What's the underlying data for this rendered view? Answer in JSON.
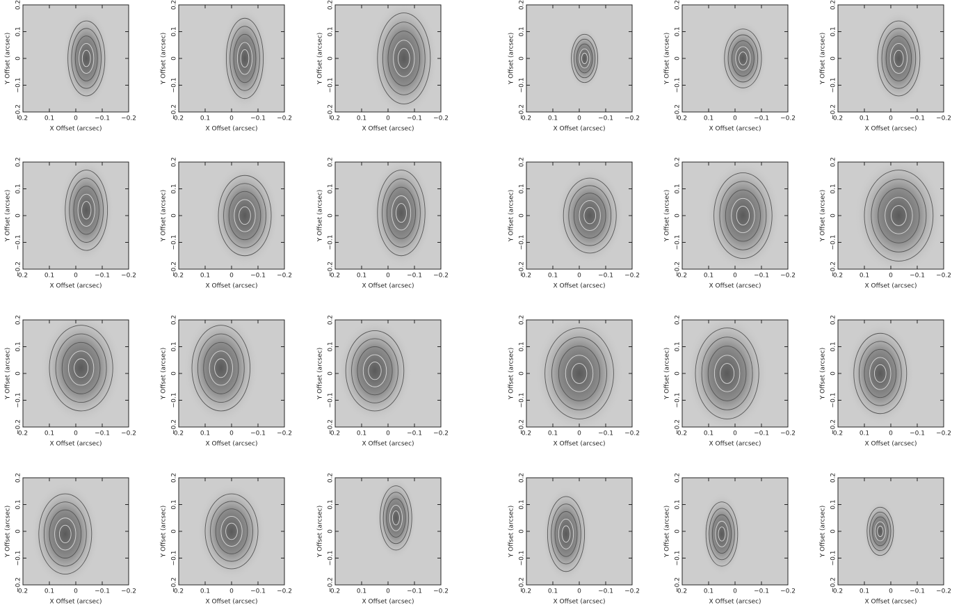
{
  "chart_data": [
    {
      "type": "contour",
      "xlabel": "X Offset (arcsec)",
      "ylabel": "Y Offset (arcsec)",
      "xlim": [
        0.2,
        -0.2
      ],
      "ylim": [
        -0.2,
        0.2
      ],
      "xticks": [
        0.2,
        0.1,
        0,
        {
          "value": -0.1,
          "label": "−0.1"
        },
        {
          "value": -0.2,
          "label": "−0.2"
        }
      ],
      "yticks": [
        {
          "value": -0.2,
          "label": "−0.2"
        },
        {
          "value": -0.1,
          "label": "−0.1"
        },
        0,
        0.1,
        0.2
      ],
      "peak_x": -0.04,
      "peak_y": 0,
      "extent_x": 0.07,
      "extent_y": 0.14
    },
    {
      "type": "contour",
      "xlabel": "X Offset (arcsec)",
      "ylabel": "Y Offset (arcsec)",
      "xlim": [
        0.2,
        -0.2
      ],
      "ylim": [
        -0.2,
        0.2
      ],
      "xticks": [
        0.2,
        0.1,
        0,
        {
          "value": -0.1,
          "label": "−0.1"
        },
        {
          "value": -0.2,
          "label": "−0.2"
        }
      ],
      "yticks": [
        {
          "value": -0.2,
          "label": "−0.2"
        },
        {
          "value": -0.1,
          "label": "−0.1"
        },
        0,
        0.1,
        0.2
      ],
      "peak_x": -0.05,
      "peak_y": 0,
      "extent_x": 0.07,
      "extent_y": 0.15
    },
    {
      "type": "contour",
      "xlabel": "X Offset (arcsec)",
      "ylabel": "Y Offset (arcsec)",
      "xlim": [
        0.2,
        -0.2
      ],
      "ylim": [
        -0.2,
        0.2
      ],
      "xticks": [
        0.2,
        0.1,
        0,
        {
          "value": -0.1,
          "label": "−0.1"
        },
        {
          "value": -0.2,
          "label": "−0.2"
        }
      ],
      "yticks": [
        {
          "value": -0.2,
          "label": "−0.2"
        },
        {
          "value": -0.1,
          "label": "−0.1"
        },
        0,
        0.1,
        0.2
      ],
      "peak_x": -0.06,
      "peak_y": 0,
      "extent_x": 0.1,
      "extent_y": 0.17
    },
    {
      "type": "contour",
      "xlabel": "X Offset (arcsec)",
      "ylabel": "Y Offset (arcsec)",
      "xlim": [
        0.2,
        -0.2
      ],
      "ylim": [
        -0.2,
        0.2
      ],
      "xticks": [
        0.2,
        0.1,
        0,
        {
          "value": -0.1,
          "label": "−0.1"
        },
        {
          "value": -0.2,
          "label": "−0.2"
        }
      ],
      "yticks": [
        {
          "value": -0.2,
          "label": "−0.2"
        },
        {
          "value": -0.1,
          "label": "−0.1"
        },
        0,
        0.1,
        0.2
      ],
      "peak_x": -0.02,
      "peak_y": 0,
      "extent_x": 0.05,
      "extent_y": 0.09
    },
    {
      "type": "contour",
      "xlabel": "X Offset (arcsec)",
      "ylabel": "Y Offset (arcsec)",
      "xlim": [
        0.2,
        -0.2
      ],
      "ylim": [
        -0.2,
        0.2
      ],
      "xticks": [
        0.2,
        0.1,
        0,
        {
          "value": -0.1,
          "label": "−0.1"
        },
        {
          "value": -0.2,
          "label": "−0.2"
        }
      ],
      "yticks": [
        {
          "value": -0.2,
          "label": "−0.2"
        },
        {
          "value": -0.1,
          "label": "−0.1"
        },
        0,
        0.1,
        0.2
      ],
      "peak_x": -0.03,
      "peak_y": 0,
      "extent_x": 0.07,
      "extent_y": 0.11
    },
    {
      "type": "contour",
      "xlabel": "X Offset (arcsec)",
      "ylabel": "Y Offset (arcsec)",
      "xlim": [
        0.2,
        -0.2
      ],
      "ylim": [
        -0.2,
        0.2
      ],
      "xticks": [
        0.2,
        0.1,
        0,
        {
          "value": -0.1,
          "label": "−0.1"
        },
        {
          "value": -0.2,
          "label": "−0.2"
        }
      ],
      "yticks": [
        {
          "value": -0.2,
          "label": "−0.2"
        },
        {
          "value": -0.1,
          "label": "−0.1"
        },
        0,
        0.1,
        0.2
      ],
      "peak_x": -0.03,
      "peak_y": 0,
      "extent_x": 0.08,
      "extent_y": 0.14
    },
    {
      "type": "contour",
      "xlabel": "X Offset (arcsec)",
      "ylabel": "Y Offset (arcsec)",
      "xlim": [
        0.2,
        -0.2
      ],
      "ylim": [
        -0.2,
        0.2
      ],
      "xticks": [
        0.2,
        0.1,
        0,
        {
          "value": -0.1,
          "label": "−0.1"
        },
        {
          "value": -0.2,
          "label": "−0.2"
        }
      ],
      "yticks": [
        {
          "value": -0.2,
          "label": "−0.2"
        },
        {
          "value": -0.1,
          "label": "−0.1"
        },
        0,
        0.1,
        0.2
      ],
      "peak_x": -0.04,
      "peak_y": 0.02,
      "extent_x": 0.08,
      "extent_y": 0.15
    },
    {
      "type": "contour",
      "xlabel": "X Offset (arcsec)",
      "ylabel": "Y Offset (arcsec)",
      "xlim": [
        0.2,
        -0.2
      ],
      "ylim": [
        -0.2,
        0.2
      ],
      "xticks": [
        0.2,
        0.1,
        0,
        {
          "value": -0.1,
          "label": "−0.1"
        },
        {
          "value": -0.2,
          "label": "−0.2"
        }
      ],
      "yticks": [
        {
          "value": -0.2,
          "label": "−0.2"
        },
        {
          "value": -0.1,
          "label": "−0.1"
        },
        0,
        0.1,
        0.2
      ],
      "peak_x": -0.05,
      "peak_y": 0,
      "extent_x": 0.1,
      "extent_y": 0.15
    },
    {
      "type": "contour",
      "xlabel": "X Offset (arcsec)",
      "ylabel": "Y Offset (arcsec)",
      "xlim": [
        0.2,
        -0.2
      ],
      "ylim": [
        -0.2,
        0.2
      ],
      "xticks": [
        0.2,
        0.1,
        0,
        {
          "value": -0.1,
          "label": "−0.1"
        },
        {
          "value": -0.2,
          "label": "−0.2"
        }
      ],
      "yticks": [
        {
          "value": -0.2,
          "label": "−0.2"
        },
        {
          "value": -0.1,
          "label": "−0.1"
        },
        0,
        0.1,
        0.2
      ],
      "peak_x": -0.05,
      "peak_y": 0.01,
      "extent_x": 0.09,
      "extent_y": 0.16
    },
    {
      "type": "contour",
      "xlabel": "X Offset (arcsec)",
      "ylabel": "Y Offset (arcsec)",
      "xlim": [
        0.2,
        -0.2
      ],
      "ylim": [
        -0.2,
        0.2
      ],
      "xticks": [
        0.2,
        0.1,
        0,
        {
          "value": -0.1,
          "label": "−0.1"
        },
        {
          "value": -0.2,
          "label": "−0.2"
        }
      ],
      "yticks": [
        {
          "value": -0.2,
          "label": "−0.2"
        },
        {
          "value": -0.1,
          "label": "−0.1"
        },
        0,
        0.1,
        0.2
      ],
      "peak_x": -0.04,
      "peak_y": 0,
      "extent_x": 0.1,
      "extent_y": 0.14
    },
    {
      "type": "contour",
      "xlabel": "X Offset (arcsec)",
      "ylabel": "Y Offset (arcsec)",
      "xlim": [
        0.2,
        -0.2
      ],
      "ylim": [
        -0.2,
        0.2
      ],
      "xticks": [
        0.2,
        0.1,
        0,
        {
          "value": -0.1,
          "label": "−0.1"
        },
        {
          "value": -0.2,
          "label": "−0.2"
        }
      ],
      "yticks": [
        {
          "value": -0.2,
          "label": "−0.2"
        },
        {
          "value": -0.1,
          "label": "−0.1"
        },
        0,
        0.1,
        0.2
      ],
      "peak_x": -0.03,
      "peak_y": 0,
      "extent_x": 0.11,
      "extent_y": 0.16
    },
    {
      "type": "contour",
      "xlabel": "X Offset (arcsec)",
      "ylabel": "Y Offset (arcsec)",
      "xlim": [
        0.2,
        -0.2
      ],
      "ylim": [
        -0.2,
        0.2
      ],
      "xticks": [
        0.2,
        0.1,
        0,
        {
          "value": -0.1,
          "label": "−0.1"
        },
        {
          "value": -0.2,
          "label": "−0.2"
        }
      ],
      "yticks": [
        {
          "value": -0.2,
          "label": "−0.2"
        },
        {
          "value": -0.1,
          "label": "−0.1"
        },
        0,
        0.1,
        0.2
      ],
      "peak_x": -0.03,
      "peak_y": 0,
      "extent_x": 0.13,
      "extent_y": 0.17
    },
    {
      "type": "contour",
      "xlabel": "X Offset (arcsec)",
      "ylabel": "Y Offset (arcsec)",
      "xlim": [
        0.2,
        -0.2
      ],
      "ylim": [
        -0.2,
        0.2
      ],
      "xticks": [
        0.2,
        0.1,
        0,
        {
          "value": -0.1,
          "label": "−0.1"
        },
        {
          "value": -0.2,
          "label": "−0.2"
        }
      ],
      "yticks": [
        {
          "value": -0.2,
          "label": "−0.2"
        },
        {
          "value": -0.1,
          "label": "−0.1"
        },
        0,
        0.1,
        0.2
      ],
      "peak_x": -0.02,
      "peak_y": 0.02,
      "extent_x": 0.12,
      "extent_y": 0.16
    },
    {
      "type": "contour",
      "xlabel": "X Offset (arcsec)",
      "ylabel": "Y Offset (arcsec)",
      "xlim": [
        0.2,
        -0.2
      ],
      "ylim": [
        -0.2,
        0.2
      ],
      "xticks": [
        0.2,
        0.1,
        0,
        {
          "value": -0.1,
          "label": "−0.1"
        },
        {
          "value": -0.2,
          "label": "−0.2"
        }
      ],
      "yticks": [
        {
          "value": -0.2,
          "label": "−0.2"
        },
        {
          "value": -0.1,
          "label": "−0.1"
        },
        0,
        0.1,
        0.2
      ],
      "peak_x": 0.04,
      "peak_y": 0.02,
      "extent_x": 0.11,
      "extent_y": 0.16
    },
    {
      "type": "contour",
      "xlabel": "X Offset (arcsec)",
      "ylabel": "Y Offset (arcsec)",
      "xlim": [
        0.2,
        -0.2
      ],
      "ylim": [
        -0.2,
        0.2
      ],
      "xticks": [
        0.2,
        0.1,
        0,
        {
          "value": -0.1,
          "label": "−0.1"
        },
        {
          "value": -0.2,
          "label": "−0.2"
        }
      ],
      "yticks": [
        {
          "value": -0.2,
          "label": "−0.2"
        },
        {
          "value": -0.1,
          "label": "−0.1"
        },
        0,
        0.1,
        0.2
      ],
      "peak_x": 0.05,
      "peak_y": 0.01,
      "extent_x": 0.11,
      "extent_y": 0.15
    },
    {
      "type": "contour",
      "xlabel": "X Offset (arcsec)",
      "ylabel": "Y Offset (arcsec)",
      "xlim": [
        0.2,
        -0.2
      ],
      "ylim": [
        -0.2,
        0.2
      ],
      "xticks": [
        0.2,
        0.1,
        0,
        {
          "value": -0.1,
          "label": "−0.1"
        },
        {
          "value": -0.2,
          "label": "−0.2"
        }
      ],
      "yticks": [
        {
          "value": -0.2,
          "label": "−0.2"
        },
        {
          "value": -0.1,
          "label": "−0.1"
        },
        0,
        0.1,
        0.2
      ],
      "peak_x": 0,
      "peak_y": 0,
      "extent_x": 0.13,
      "extent_y": 0.17
    },
    {
      "type": "contour",
      "xlabel": "X Offset (arcsec)",
      "ylabel": "Y Offset (arcsec)",
      "xlim": [
        0.2,
        -0.2
      ],
      "ylim": [
        -0.2,
        0.2
      ],
      "xticks": [
        0.2,
        0.1,
        0,
        {
          "value": -0.1,
          "label": "−0.1"
        },
        {
          "value": -0.2,
          "label": "−0.2"
        }
      ],
      "yticks": [
        {
          "value": -0.2,
          "label": "−0.2"
        },
        {
          "value": -0.1,
          "label": "−0.1"
        },
        0,
        0.1,
        0.2
      ],
      "peak_x": 0.03,
      "peak_y": 0,
      "extent_x": 0.12,
      "extent_y": 0.17
    },
    {
      "type": "contour",
      "xlabel": "X Offset (arcsec)",
      "ylabel": "Y Offset (arcsec)",
      "xlim": [
        0.2,
        -0.2
      ],
      "ylim": [
        -0.2,
        0.2
      ],
      "xticks": [
        0.2,
        0.1,
        0,
        {
          "value": -0.1,
          "label": "−0.1"
        },
        {
          "value": -0.2,
          "label": "−0.2"
        }
      ],
      "yticks": [
        {
          "value": -0.2,
          "label": "−0.2"
        },
        {
          "value": -0.1,
          "label": "−0.1"
        },
        0,
        0.1,
        0.2
      ],
      "peak_x": 0.04,
      "peak_y": 0,
      "extent_x": 0.1,
      "extent_y": 0.15
    },
    {
      "type": "contour",
      "xlabel": "X Offset (arcsec)",
      "ylabel": "Y Offset (arcsec)",
      "xlim": [
        0.2,
        -0.2
      ],
      "ylim": [
        -0.2,
        0.2
      ],
      "xticks": [
        0.2,
        0.1,
        0,
        {
          "value": -0.1,
          "label": "−0.1"
        },
        {
          "value": -0.2,
          "label": "−0.2"
        }
      ],
      "yticks": [
        {
          "value": -0.2,
          "label": "−0.2"
        },
        {
          "value": -0.1,
          "label": "−0.1"
        },
        0,
        0.1,
        0.2
      ],
      "peak_x": 0.04,
      "peak_y": -0.01,
      "extent_x": 0.1,
      "extent_y": 0.15
    },
    {
      "type": "contour",
      "xlabel": "X Offset (arcsec)",
      "ylabel": "Y Offset (arcsec)",
      "xlim": [
        0.2,
        -0.2
      ],
      "ylim": [
        -0.2,
        0.2
      ],
      "xticks": [
        0.2,
        0.1,
        0,
        {
          "value": -0.1,
          "label": "−0.1"
        },
        {
          "value": -0.2,
          "label": "−0.2"
        }
      ],
      "yticks": [
        {
          "value": -0.2,
          "label": "−0.2"
        },
        {
          "value": -0.1,
          "label": "−0.1"
        },
        0,
        0.1,
        0.2
      ],
      "peak_x": 0,
      "peak_y": 0,
      "extent_x": 0.1,
      "extent_y": 0.14
    },
    {
      "type": "contour",
      "xlabel": "X Offset (arcsec)",
      "ylabel": "Y Offset (arcsec)",
      "xlim": [
        0.2,
        -0.2
      ],
      "ylim": [
        -0.2,
        0.2
      ],
      "xticks": [
        0.2,
        0.1,
        0,
        {
          "value": -0.1,
          "label": "−0.1"
        },
        {
          "value": -0.2,
          "label": "−0.2"
        }
      ],
      "yticks": [
        {
          "value": -0.2,
          "label": "−0.2"
        },
        {
          "value": -0.1,
          "label": "−0.1"
        },
        0,
        0.1,
        0.2
      ],
      "peak_x": -0.03,
      "peak_y": 0.05,
      "extent_x": 0.06,
      "extent_y": 0.12
    },
    {
      "type": "contour",
      "xlabel": "X Offset (arcsec)",
      "ylabel": "Y Offset (arcsec)",
      "xlim": [
        0.2,
        -0.2
      ],
      "ylim": [
        -0.2,
        0.2
      ],
      "xticks": [
        0.2,
        0.1,
        0,
        {
          "value": -0.1,
          "label": "−0.1"
        },
        {
          "value": -0.2,
          "label": "−0.2"
        }
      ],
      "yticks": [
        {
          "value": -0.2,
          "label": "−0.2"
        },
        {
          "value": -0.1,
          "label": "−0.1"
        },
        0,
        0.1,
        0.2
      ],
      "peak_x": 0.05,
      "peak_y": -0.01,
      "extent_x": 0.07,
      "extent_y": 0.14
    },
    {
      "type": "contour",
      "xlabel": "X Offset (arcsec)",
      "ylabel": "Y Offset (arcsec)",
      "xlim": [
        0.2,
        -0.2
      ],
      "ylim": [
        -0.2,
        0.2
      ],
      "xticks": [
        0.2,
        0.1,
        0,
        {
          "value": -0.1,
          "label": "−0.1"
        },
        {
          "value": -0.2,
          "label": "−0.2"
        }
      ],
      "yticks": [
        {
          "value": -0.2,
          "label": "−0.2"
        },
        {
          "value": -0.1,
          "label": "−0.1"
        },
        0,
        0.1,
        0.2
      ],
      "peak_x": 0.05,
      "peak_y": -0.01,
      "extent_x": 0.06,
      "extent_y": 0.12
    },
    {
      "type": "contour",
      "xlabel": "X Offset (arcsec)",
      "ylabel": "Y Offset (arcsec)",
      "xlim": [
        0.2,
        -0.2
      ],
      "ylim": [
        -0.2,
        0.2
      ],
      "xticks": [
        0.2,
        0.1,
        0,
        {
          "value": -0.1,
          "label": "−0.1"
        },
        {
          "value": -0.2,
          "label": "−0.2"
        }
      ],
      "yticks": [
        {
          "value": -0.2,
          "label": "−0.2"
        },
        {
          "value": -0.1,
          "label": "−0.1"
        },
        0,
        0.1,
        0.2
      ],
      "peak_x": 0.04,
      "peak_y": 0,
      "extent_x": 0.05,
      "extent_y": 0.09
    }
  ]
}
